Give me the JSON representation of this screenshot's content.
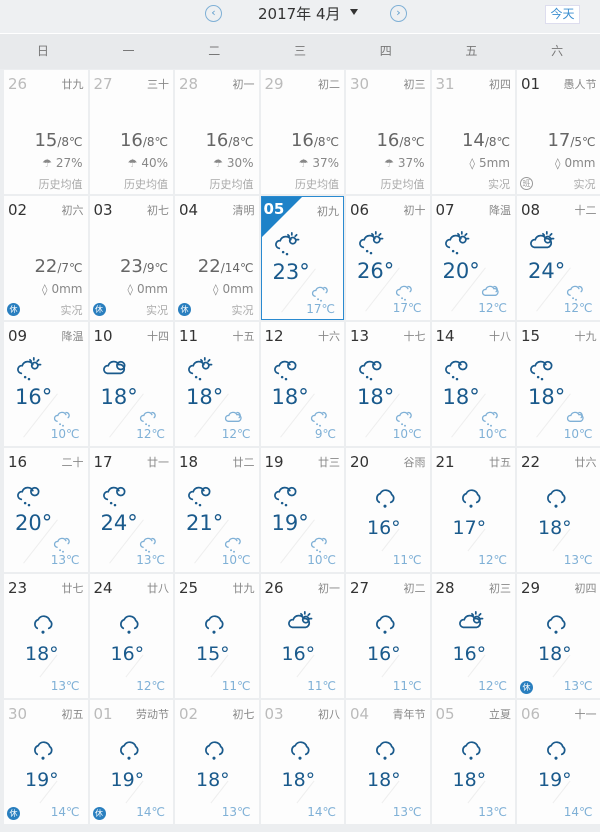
{
  "header": {
    "title": "2017年 4月",
    "prev_icon": "chevron-left-icon",
    "next_icon": "chevron-right-icon",
    "today_label": "今天"
  },
  "weekdays": [
    "日",
    "一",
    "二",
    "三",
    "四",
    "五",
    "六"
  ],
  "colors": {
    "accent": "#1e82c8",
    "temp": "#1a5a8c",
    "low_temp": "#7fb0d6"
  },
  "past_days": [
    {
      "date": "26",
      "lunar": "廿九",
      "dim": true,
      "hi": "15",
      "lo": "/8℃",
      "prec_icon": "umbrella-icon",
      "prec": "27%",
      "label": "历史均值"
    },
    {
      "date": "27",
      "lunar": "三十",
      "dim": true,
      "hi": "16",
      "lo": "/8℃",
      "prec_icon": "umbrella-icon",
      "prec": "40%",
      "label": "历史均值"
    },
    {
      "date": "28",
      "lunar": "初一",
      "dim": true,
      "hi": "16",
      "lo": "/8℃",
      "prec_icon": "umbrella-icon",
      "prec": "30%",
      "label": "历史均值"
    },
    {
      "date": "29",
      "lunar": "初二",
      "dim": true,
      "hi": "16",
      "lo": "/8℃",
      "prec_icon": "umbrella-icon",
      "prec": "37%",
      "label": "历史均值"
    },
    {
      "date": "30",
      "lunar": "初三",
      "dim": true,
      "hi": "16",
      "lo": "/8℃",
      "prec_icon": "umbrella-icon",
      "prec": "37%",
      "label": "历史均值"
    },
    {
      "date": "31",
      "lunar": "初四",
      "dim": true,
      "hi": "14",
      "lo": "/8℃",
      "prec_icon": "drop-icon",
      "prec": "5mm",
      "label": "实况"
    },
    {
      "date": "01",
      "lunar": "愚人节",
      "hi": "17",
      "lo": "/5℃",
      "prec_icon": "drop-icon",
      "prec": "0mm",
      "label": "实况",
      "badge": "班",
      "badge_type": "work"
    },
    {
      "date": "02",
      "lunar": "初六",
      "hi": "22",
      "lo": "/7℃",
      "prec_icon": "drop-icon",
      "prec": "0mm",
      "label": "实况",
      "badge": "休"
    },
    {
      "date": "03",
      "lunar": "初七",
      "hi": "23",
      "lo": "/9℃",
      "prec_icon": "drop-icon",
      "prec": "0mm",
      "label": "实况",
      "badge": "休"
    },
    {
      "date": "04",
      "lunar": "清明",
      "hi": "22",
      "lo": "/14℃",
      "prec_icon": "drop-icon",
      "prec": "0mm",
      "label": "实况",
      "badge": "休"
    }
  ],
  "forecast_days": [
    {
      "date": "05",
      "lunar": "初九",
      "today": true,
      "day_icon": "sun-shower",
      "hi": "23°",
      "night_icon": "night-shower",
      "lo": "17℃"
    },
    {
      "date": "06",
      "lunar": "初十",
      "day_icon": "sun-shower",
      "hi": "26°",
      "night_icon": "night-shower",
      "lo": "17℃"
    },
    {
      "date": "07",
      "lunar": "降温",
      "day_icon": "sun-shower",
      "hi": "20°",
      "night_icon": "night-cloudy",
      "lo": "12℃"
    },
    {
      "date": "08",
      "lunar": "十二",
      "day_icon": "cloud-sun",
      "hi": "24°",
      "night_icon": "night-shower",
      "lo": "12℃"
    },
    {
      "date": "09",
      "lunar": "降温",
      "day_icon": "sun-shower",
      "hi": "16°",
      "night_icon": "night-shower",
      "lo": "10℃"
    },
    {
      "date": "10",
      "lunar": "十四",
      "day_icon": "cloudy",
      "hi": "18°",
      "night_icon": "night-shower",
      "lo": "12℃"
    },
    {
      "date": "11",
      "lunar": "十五",
      "day_icon": "sun-shower",
      "hi": "18°",
      "night_icon": "night-cloudy",
      "lo": "12℃"
    },
    {
      "date": "12",
      "lunar": "十六",
      "day_icon": "cloudy-rain",
      "hi": "18°",
      "night_icon": "night-shower",
      "lo": "9℃"
    },
    {
      "date": "13",
      "lunar": "十七",
      "day_icon": "cloudy-rain",
      "hi": "18°",
      "night_icon": "night-shower",
      "lo": "10℃"
    },
    {
      "date": "14",
      "lunar": "十八",
      "day_icon": "cloudy-rain",
      "hi": "18°",
      "night_icon": "night-shower",
      "lo": "10℃"
    },
    {
      "date": "15",
      "lunar": "十九",
      "day_icon": "cloudy-rain",
      "hi": "18°",
      "night_icon": "night-cloudy",
      "lo": "10℃"
    },
    {
      "date": "16",
      "lunar": "二十",
      "day_icon": "cloudy-rain",
      "hi": "20°",
      "night_icon": "night-shower",
      "lo": "13℃"
    },
    {
      "date": "17",
      "lunar": "廿一",
      "day_icon": "cloudy-rain",
      "hi": "24°",
      "night_icon": "night-shower",
      "lo": "13℃"
    },
    {
      "date": "18",
      "lunar": "廿二",
      "day_icon": "cloudy-rain",
      "hi": "21°",
      "night_icon": "night-shower",
      "lo": "10℃"
    },
    {
      "date": "19",
      "lunar": "廿三",
      "day_icon": "cloudy-rain",
      "hi": "19°",
      "night_icon": "night-shower",
      "lo": "10℃"
    },
    {
      "date": "20",
      "lunar": "谷雨",
      "day_icon": "rain",
      "hi": "16°",
      "lo": "11℃"
    },
    {
      "date": "21",
      "lunar": "廿五",
      "day_icon": "rain",
      "hi": "17°",
      "lo": "12℃"
    },
    {
      "date": "22",
      "lunar": "廿六",
      "day_icon": "rain",
      "hi": "18°",
      "lo": "13℃"
    },
    {
      "date": "23",
      "lunar": "廿七",
      "day_icon": "rain",
      "hi": "18°",
      "lo": "13℃"
    },
    {
      "date": "24",
      "lunar": "廿八",
      "day_icon": "rain",
      "hi": "16°",
      "lo": "12℃"
    },
    {
      "date": "25",
      "lunar": "廿九",
      "day_icon": "rain",
      "hi": "15°",
      "lo": "11℃"
    },
    {
      "date": "26",
      "lunar": "初一",
      "day_icon": "cloud-sun",
      "hi": "16°",
      "lo": "11℃"
    },
    {
      "date": "27",
      "lunar": "初二",
      "day_icon": "rain",
      "hi": "16°",
      "lo": "11℃"
    },
    {
      "date": "28",
      "lunar": "初三",
      "day_icon": "cloud-sun",
      "hi": "16°",
      "lo": "12℃"
    },
    {
      "date": "29",
      "lunar": "初四",
      "day_icon": "rain",
      "hi": "18°",
      "lo": "13℃",
      "badge": "休"
    },
    {
      "date": "30",
      "lunar": "初五",
      "dim": true,
      "day_icon": "rain",
      "hi": "19°",
      "lo": "14℃",
      "badge": "休"
    },
    {
      "date": "01",
      "lunar": "劳动节",
      "dim": true,
      "day_icon": "rain",
      "hi": "19°",
      "lo": "14℃",
      "badge": "休"
    },
    {
      "date": "02",
      "lunar": "初七",
      "dim": true,
      "day_icon": "rain",
      "hi": "18°",
      "lo": "13℃"
    },
    {
      "date": "03",
      "lunar": "初八",
      "dim": true,
      "day_icon": "rain",
      "hi": "18°",
      "lo": "14℃"
    },
    {
      "date": "04",
      "lunar": "青年节",
      "dim": true,
      "day_icon": "rain",
      "hi": "18°",
      "lo": "13℃"
    },
    {
      "date": "05",
      "lunar": "立夏",
      "dim": true,
      "day_icon": "rain",
      "hi": "18°",
      "lo": "13℃"
    },
    {
      "date": "06",
      "lunar": "十一",
      "dim": true,
      "day_icon": "rain",
      "hi": "19°",
      "lo": "14℃"
    }
  ]
}
